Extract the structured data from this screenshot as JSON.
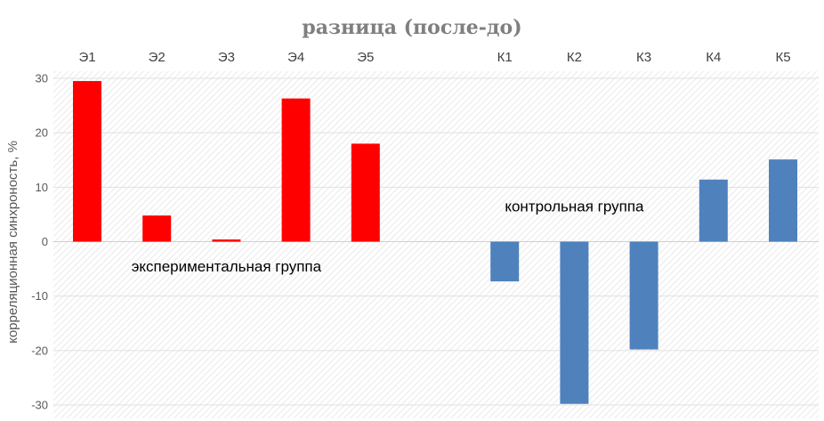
{
  "chart_data": {
    "type": "bar",
    "title": "разница (после-до)",
    "xlabel": "",
    "ylabel": "корреляционная синхроность, %",
    "ylim": [
      -30,
      30
    ],
    "yticks": [
      30,
      20,
      10,
      0,
      -10,
      -20,
      -30
    ],
    "grid": true,
    "categories": [
      "Э1",
      "Э2",
      "Э3",
      "Э4",
      "Э5",
      "",
      "К1",
      "К2",
      "К3",
      "К4",
      "К5"
    ],
    "values": [
      29.5,
      4.8,
      0.4,
      26.3,
      18.0,
      null,
      -7.3,
      -29.8,
      -19.8,
      11.4,
      15.1
    ],
    "colors": [
      "#ff0000",
      "#ff0000",
      "#ff0000",
      "#ff0000",
      "#ff0000",
      null,
      "#4f81bd",
      "#4f81bd",
      "#4f81bd",
      "#4f81bd",
      "#4f81bd"
    ],
    "annotations": [
      {
        "text": "экспериментальная группа",
        "near": "Э3",
        "at_value": -4.5
      },
      {
        "text": "контрольная группа",
        "near": "К2",
        "at_value": 6.5
      }
    ]
  }
}
